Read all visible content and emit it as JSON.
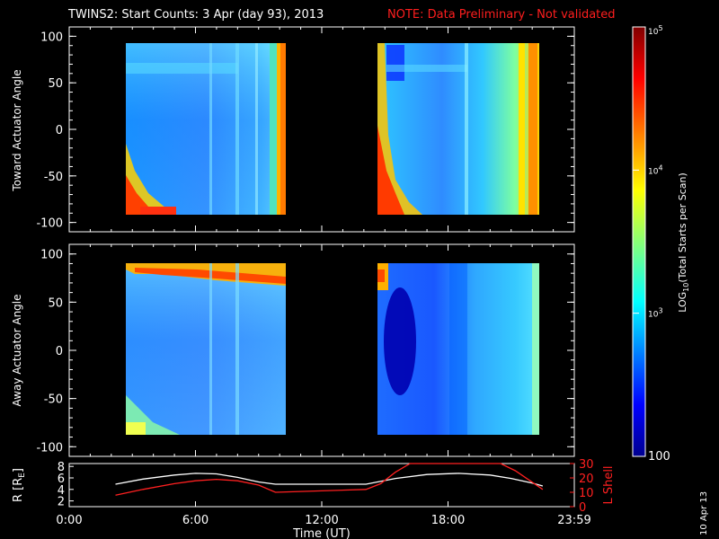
{
  "title": {
    "main": "TWINS2: Start Counts:  3 Apr (day  93), 2013",
    "note": "NOTE: Data Preliminary - Not validated"
  },
  "colorbar": {
    "label_main": "LOG",
    "label_sub": "10",
    "label_rest": "(Total Starts per Scan)",
    "ticks": [
      {
        "base": "10",
        "exp": "5"
      },
      {
        "base": "10",
        "exp": "4"
      },
      {
        "base": "10",
        "exp": "3"
      },
      {
        "base": "100",
        "exp": ""
      }
    ]
  },
  "footer_date": "10 Apr 13",
  "colors": {
    "background": "#000000",
    "axes": "#ffffff",
    "note": "#ff1e1e",
    "lshell": "#ff2020",
    "radius": "#ffffff"
  },
  "chart_data": [
    {
      "type": "heatmap",
      "ylabel": "Toward Actuator Angle",
      "ylim": [
        -110,
        110
      ],
      "yticks": [
        "100",
        "50",
        "0",
        "-50",
        "-100"
      ],
      "colorscale": "jet (log)",
      "data_blocks": [
        {
          "start_hour": 2.2,
          "end_hour": 9.4,
          "angle_range": [
            -90,
            90
          ]
        },
        {
          "start_hour": 14.1,
          "end_hour": 21.3,
          "angle_range": [
            -90,
            90
          ]
        }
      ],
      "log_counts_typical": 3.2,
      "notes": "high counts near -90 deg at block start and towards block end"
    },
    {
      "type": "heatmap",
      "ylabel": "Away Actuator Angle",
      "ylim": [
        -110,
        110
      ],
      "yticks": [
        "100",
        "50",
        "0",
        "-50",
        "-100"
      ],
      "colorscale": "jet (log)",
      "data_blocks": [
        {
          "start_hour": 2.2,
          "end_hour": 9.4,
          "angle_range": [
            -90,
            90
          ]
        },
        {
          "start_hour": 14.1,
          "end_hour": 21.3,
          "angle_range": [
            -90,
            90
          ]
        }
      ],
      "log_counts_typical": 3.1,
      "notes": "high counts band near +80 deg in first block"
    },
    {
      "type": "line",
      "xlabel": "Time (UT)",
      "xticks": [
        "0:00",
        "6:00",
        "12:00",
        "18:00",
        "23:59"
      ],
      "xlim": [
        0,
        24
      ],
      "ylabel_left": "R [R",
      "ylabel_left_sub": "E",
      "ylabel_left_end": "]",
      "ylim_left": [
        2,
        8
      ],
      "yticks_left": [
        "8",
        "6",
        "4",
        "2"
      ],
      "ylabel_right": "L Shell",
      "ylim_right": [
        0,
        30
      ],
      "yticks_right": [
        "30",
        "20",
        "10",
        "0"
      ],
      "series": [
        {
          "name": "R",
          "axis": "left",
          "x": [
            2.2,
            3.5,
            5.0,
            6.0,
            7.0,
            8.0,
            9.0,
            9.8,
            12.0,
            14.1,
            15.5,
            17.0,
            18.5,
            20.0,
            21.0,
            22.0,
            22.5
          ],
          "y": [
            4.9,
            5.8,
            6.5,
            6.8,
            6.7,
            6.1,
            5.3,
            4.9,
            4.9,
            4.9,
            5.9,
            6.6,
            6.8,
            6.5,
            5.9,
            5.1,
            4.6
          ]
        },
        {
          "name": "L Shell",
          "axis": "right",
          "x": [
            2.2,
            3.5,
            5.0,
            6.0,
            7.0,
            8.0,
            9.0,
            9.8,
            12.0,
            14.1,
            14.8,
            15.5,
            16.2,
            20.5,
            21.2,
            22.0,
            22.5
          ],
          "y": [
            8,
            12,
            16,
            18,
            19,
            18,
            15,
            10,
            11,
            12,
            16,
            24,
            31,
            31,
            25,
            17,
            12
          ]
        }
      ]
    }
  ]
}
